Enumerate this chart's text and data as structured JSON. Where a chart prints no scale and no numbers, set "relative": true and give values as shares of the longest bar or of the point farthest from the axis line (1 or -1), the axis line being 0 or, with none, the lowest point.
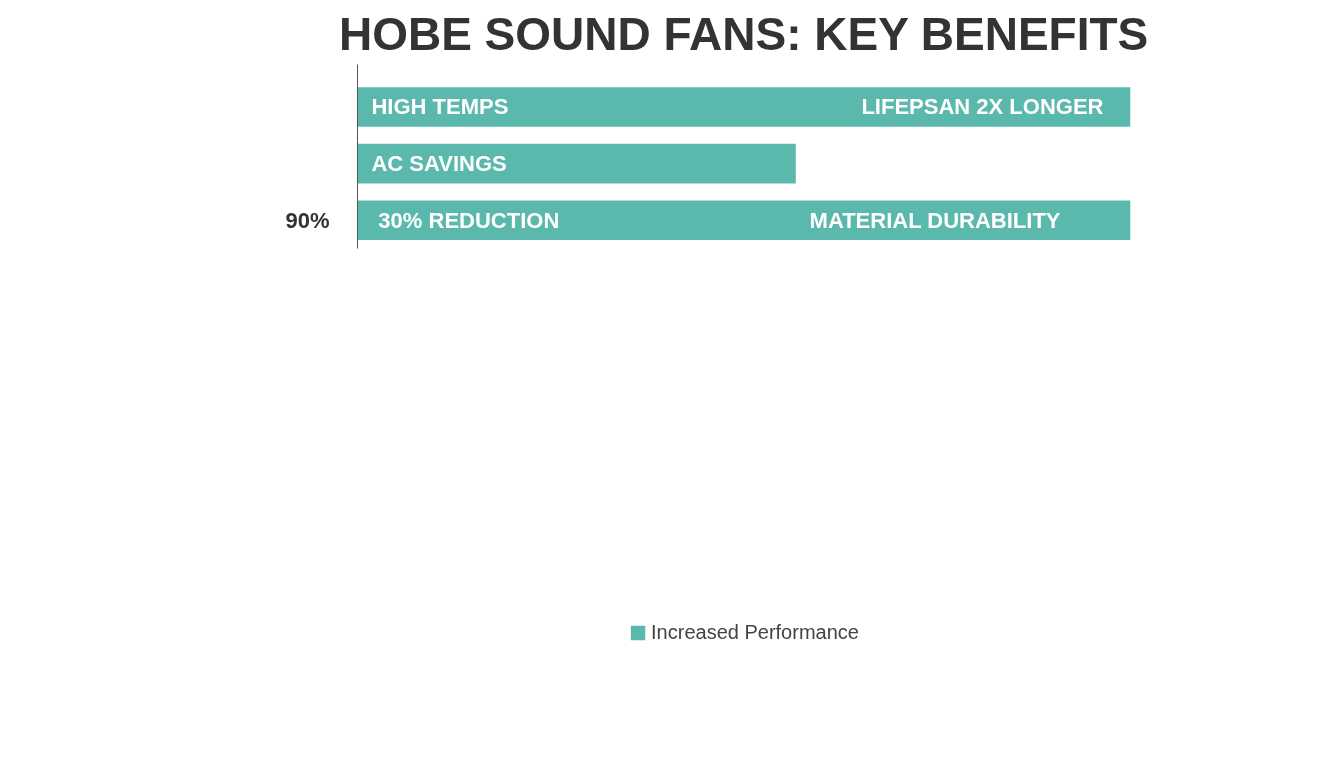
{
  "chart_data": {
    "type": "bar",
    "orientation": "horizontal",
    "relative": true,
    "title": "HOBE SOUND FANS: KEY BENEFITS",
    "categories": [
      null,
      null,
      "90%"
    ],
    "series": [
      {
        "name": "Increased Performance",
        "color": "#5ab8ac",
        "values": [
          1,
          0.567,
          1
        ]
      }
    ],
    "annotations": [
      "HIGH TEMPS",
      "LIFEPSAN 2X LONGER",
      "AC SAVINGS",
      "30% REDUCTION",
      "MATERIAL DURABILITY"
    ],
    "legend": "bottom",
    "grid": false
  }
}
